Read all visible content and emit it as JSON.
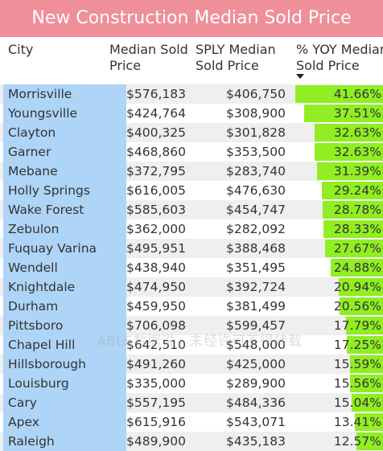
{
  "title": "New Construction Median Sold Price",
  "watermark": "ABLE数据说，未经许可不得转载",
  "colors": {
    "title_bg": "#ee8f9a",
    "city_bg": "#aed4f7",
    "bar": "#90ee22"
  },
  "headers": {
    "city": "City",
    "median_line1": "Median Sold",
    "median_line2": "Price",
    "sply_line1": "SPLY Median",
    "sply_line2": "Sold Price",
    "yoy_line1": "% YOY Median",
    "yoy_line2": "Sold Price",
    "sort_icon": "sort-descending-icon"
  },
  "chart_data": {
    "type": "table",
    "title": "New Construction Median Sold Price",
    "columns": [
      "City",
      "Median Sold Price",
      "SPLY Median Sold Price",
      "% YOY Median Sold Price"
    ],
    "sorted_by": "% YOY Median Sold Price",
    "sort_order": "descending",
    "rows": [
      {
        "city": "Morrisville",
        "median": "$576,183",
        "sply": "$406,750",
        "yoy": "41.66%",
        "yoy_value": 41.66
      },
      {
        "city": "Youngsville",
        "median": "$424,764",
        "sply": "$308,900",
        "yoy": "37.51%",
        "yoy_value": 37.51
      },
      {
        "city": "Clayton",
        "median": "$400,325",
        "sply": "$301,828",
        "yoy": "32.63%",
        "yoy_value": 32.63
      },
      {
        "city": "Garner",
        "median": "$468,860",
        "sply": "$353,500",
        "yoy": "32.63%",
        "yoy_value": 32.63
      },
      {
        "city": "Mebane",
        "median": "$372,795",
        "sply": "$283,740",
        "yoy": "31.39%",
        "yoy_value": 31.39
      },
      {
        "city": "Holly Springs",
        "median": "$616,005",
        "sply": "$476,630",
        "yoy": "29.24%",
        "yoy_value": 29.24
      },
      {
        "city": "Wake Forest",
        "median": "$585,603",
        "sply": "$454,747",
        "yoy": "28.78%",
        "yoy_value": 28.78
      },
      {
        "city": "Zebulon",
        "median": "$362,000",
        "sply": "$282,092",
        "yoy": "28.33%",
        "yoy_value": 28.33
      },
      {
        "city": "Fuquay Varina",
        "median": "$495,951",
        "sply": "$388,468",
        "yoy": "27.67%",
        "yoy_value": 27.67
      },
      {
        "city": "Wendell",
        "median": "$438,940",
        "sply": "$351,495",
        "yoy": "24.88%",
        "yoy_value": 24.88
      },
      {
        "city": "Knightdale",
        "median": "$474,950",
        "sply": "$392,724",
        "yoy": "20.94%",
        "yoy_value": 20.94
      },
      {
        "city": "Durham",
        "median": "$459,950",
        "sply": "$381,499",
        "yoy": "20.56%",
        "yoy_value": 20.56
      },
      {
        "city": "Pittsboro",
        "median": "$706,098",
        "sply": "$599,457",
        "yoy": "17.79%",
        "yoy_value": 17.79
      },
      {
        "city": "Chapel Hill",
        "median": "$642,510",
        "sply": "$548,000",
        "yoy": "17.25%",
        "yoy_value": 17.25
      },
      {
        "city": "Hillsborough",
        "median": "$491,260",
        "sply": "$425,000",
        "yoy": "15.59%",
        "yoy_value": 15.59
      },
      {
        "city": "Louisburg",
        "median": "$335,000",
        "sply": "$289,900",
        "yoy": "15.56%",
        "yoy_value": 15.56
      },
      {
        "city": "Cary",
        "median": "$557,195",
        "sply": "$484,336",
        "yoy": "15.04%",
        "yoy_value": 15.04
      },
      {
        "city": "Apex",
        "median": "$615,916",
        "sply": "$543,071",
        "yoy": "13.41%",
        "yoy_value": 13.41
      },
      {
        "city": "Raleigh",
        "median": "$489,900",
        "sply": "$435,183",
        "yoy": "12.57%",
        "yoy_value": 12.57
      }
    ]
  }
}
